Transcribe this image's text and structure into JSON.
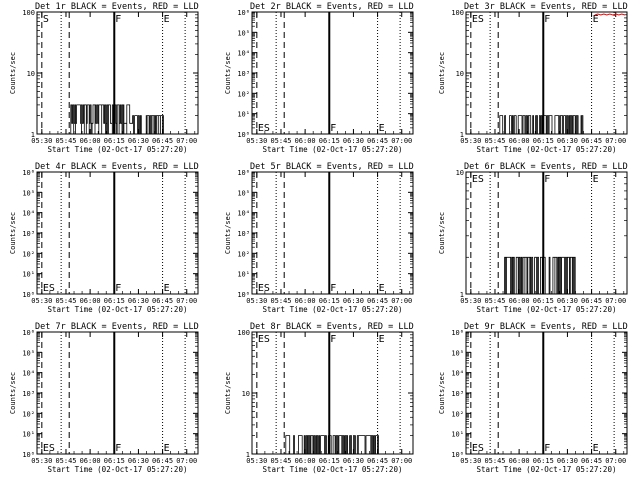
{
  "figure": {
    "xlabel": "Start Time (02-Oct-17 05:27:20)",
    "ylabel": "Counts/sec",
    "x_tick_labels": [
      "05:30",
      "05:45",
      "06:00",
      "06:15",
      "06:30",
      "06:45",
      "07:00"
    ],
    "colors": {
      "events": "#000000",
      "lld": "#ff0000"
    }
  },
  "chart_data": [
    {
      "type": "line",
      "title": "Det 1r BLACK = Events, RED = LLD",
      "yscale": "log",
      "ylim": [
        1,
        100
      ],
      "y_tick_labels": [
        "1",
        "10",
        "100"
      ],
      "xlim": [
        "05:27",
        "07:07"
      ],
      "vlines": [
        {
          "time": "05:30",
          "style": "dashed",
          "label": "S"
        },
        {
          "time": "05:47",
          "style": "dashed",
          "label": ""
        },
        {
          "time": "06:15",
          "style": "solid",
          "label": "F"
        },
        {
          "time": "06:45",
          "style": "dotted",
          "label": "E"
        },
        {
          "time": "05:42",
          "style": "dotted",
          "label": ""
        },
        {
          "time": "06:59",
          "style": "dotted",
          "label": ""
        }
      ],
      "series": [
        {
          "values_range": [
            "05:48",
            "06:46"
          ],
          "level_high": 3,
          "level_low": 2,
          "break": "06:26"
        }
      ]
    },
    {
      "type": "line",
      "title": "Det 2r BLACK = Events, RED = LLD",
      "yscale": "log",
      "ylim": [
        1,
        1000000
      ],
      "y_tick_labels": [
        "10⁰",
        "10¹",
        "10²",
        "10³",
        "10⁴",
        "10⁵",
        "10⁶"
      ],
      "xlim": [
        "05:27",
        "07:07"
      ],
      "vlines": [
        {
          "time": "05:30",
          "style": "dashed",
          "label": "ES"
        },
        {
          "time": "05:47",
          "style": "dashed",
          "label": ""
        },
        {
          "time": "06:15",
          "style": "solid",
          "label": "F"
        },
        {
          "time": "06:45",
          "style": "dotted",
          "label": "E"
        },
        {
          "time": "05:42",
          "style": "dotted",
          "label": ""
        },
        {
          "time": "06:59",
          "style": "dotted",
          "label": ""
        }
      ],
      "series": []
    },
    {
      "type": "line",
      "title": "Det 3r BLACK = Events, RED = LLD",
      "yscale": "log",
      "ylim": [
        1,
        100
      ],
      "y_tick_labels": [
        "1",
        "10",
        "100"
      ],
      "xlim": [
        "05:27",
        "07:07"
      ],
      "vlines": [
        {
          "time": "05:30",
          "style": "dashed",
          "label": "ES"
        },
        {
          "time": "05:47",
          "style": "dashed",
          "label": ""
        },
        {
          "time": "06:15",
          "style": "solid",
          "label": "F"
        },
        {
          "time": "06:45",
          "style": "dotted",
          "label": "E"
        },
        {
          "time": "05:42",
          "style": "dotted",
          "label": ""
        },
        {
          "time": "06:59",
          "style": "dotted",
          "label": ""
        }
      ],
      "series": [
        {
          "values_range": [
            "05:48",
            "06:40"
          ],
          "level_high": 2,
          "level_low": 1,
          "lld": true
        }
      ]
    },
    {
      "type": "line",
      "title": "Det 4r BLACK = Events, RED = LLD",
      "yscale": "log",
      "ylim": [
        1,
        1000000
      ],
      "y_tick_labels": [
        "10⁰",
        "10¹",
        "10²",
        "10³",
        "10⁴",
        "10⁵",
        "10⁶"
      ],
      "xlim": [
        "05:27",
        "07:07"
      ],
      "vlines": [
        {
          "time": "05:30",
          "style": "dashed",
          "label": "ES"
        },
        {
          "time": "05:47",
          "style": "dashed",
          "label": ""
        },
        {
          "time": "06:15",
          "style": "solid",
          "label": "F"
        },
        {
          "time": "06:45",
          "style": "dotted",
          "label": "E"
        },
        {
          "time": "05:42",
          "style": "dotted",
          "label": ""
        },
        {
          "time": "06:59",
          "style": "dotted",
          "label": ""
        }
      ],
      "series": []
    },
    {
      "type": "line",
      "title": "Det 5r BLACK = Events, RED = LLD",
      "yscale": "log",
      "ylim": [
        1,
        1000000
      ],
      "y_tick_labels": [
        "10⁰",
        "10¹",
        "10²",
        "10³",
        "10⁴",
        "10⁵",
        "10⁶"
      ],
      "xlim": [
        "05:27",
        "07:07"
      ],
      "vlines": [
        {
          "time": "05:30",
          "style": "dashed",
          "label": "ES"
        },
        {
          "time": "05:47",
          "style": "dashed",
          "label": ""
        },
        {
          "time": "06:15",
          "style": "solid",
          "label": "F"
        },
        {
          "time": "06:45",
          "style": "dotted",
          "label": "E"
        },
        {
          "time": "05:42",
          "style": "dotted",
          "label": ""
        },
        {
          "time": "06:59",
          "style": "dotted",
          "label": ""
        }
      ],
      "series": []
    },
    {
      "type": "line",
      "title": "Det 6r BLACK = Events, RED = LLD",
      "yscale": "log",
      "ylim": [
        1,
        10
      ],
      "y_tick_labels": [
        "1",
        "10"
      ],
      "xlim": [
        "05:27",
        "07:07"
      ],
      "vlines": [
        {
          "time": "05:30",
          "style": "dashed",
          "label": "ES"
        },
        {
          "time": "05:47",
          "style": "dashed",
          "label": ""
        },
        {
          "time": "06:15",
          "style": "solid",
          "label": "F"
        },
        {
          "time": "06:45",
          "style": "dotted",
          "label": "E"
        },
        {
          "time": "05:42",
          "style": "dotted",
          "label": ""
        },
        {
          "time": "06:59",
          "style": "dotted",
          "label": ""
        }
      ],
      "series": [
        {
          "values_range": [
            "05:48",
            "06:35"
          ],
          "level_high": 2,
          "level_low": 1
        }
      ]
    },
    {
      "type": "line",
      "title": "Det 7r BLACK = Events, RED = LLD",
      "yscale": "log",
      "ylim": [
        1,
        1000000
      ],
      "y_tick_labels": [
        "10⁰",
        "10¹",
        "10²",
        "10³",
        "10⁴",
        "10⁵",
        "10⁶"
      ],
      "xlim": [
        "05:27",
        "07:07"
      ],
      "vlines": [
        {
          "time": "05:30",
          "style": "dashed",
          "label": "ES"
        },
        {
          "time": "05:47",
          "style": "dashed",
          "label": ""
        },
        {
          "time": "06:15",
          "style": "solid",
          "label": "F"
        },
        {
          "time": "06:45",
          "style": "dotted",
          "label": "E"
        },
        {
          "time": "05:42",
          "style": "dotted",
          "label": ""
        },
        {
          "time": "06:59",
          "style": "dotted",
          "label": ""
        }
      ],
      "series": []
    },
    {
      "type": "line",
      "title": "Det 8r BLACK = Events, RED = LLD",
      "yscale": "log",
      "ylim": [
        1,
        100
      ],
      "y_tick_labels": [
        "1",
        "10",
        "100"
      ],
      "xlim": [
        "05:27",
        "07:07"
      ],
      "vlines": [
        {
          "time": "05:30",
          "style": "dashed",
          "label": "ES"
        },
        {
          "time": "05:47",
          "style": "dashed",
          "label": ""
        },
        {
          "time": "06:15",
          "style": "solid",
          "label": "F"
        },
        {
          "time": "06:45",
          "style": "dotted",
          "label": "E"
        },
        {
          "time": "05:42",
          "style": "dotted",
          "label": ""
        },
        {
          "time": "06:59",
          "style": "dotted",
          "label": ""
        }
      ],
      "series": [
        {
          "values_range": [
            "05:48",
            "06:46"
          ],
          "level_high": 2,
          "level_low": 1
        }
      ]
    },
    {
      "type": "line",
      "title": "Det 9r BLACK = Events, RED = LLD",
      "yscale": "log",
      "ylim": [
        1,
        1000000
      ],
      "y_tick_labels": [
        "10⁰",
        "10¹",
        "10²",
        "10³",
        "10⁴",
        "10⁵",
        "10⁶"
      ],
      "xlim": [
        "05:27",
        "07:07"
      ],
      "vlines": [
        {
          "time": "05:30",
          "style": "dashed",
          "label": "ES"
        },
        {
          "time": "05:47",
          "style": "dashed",
          "label": ""
        },
        {
          "time": "06:15",
          "style": "solid",
          "label": "F"
        },
        {
          "time": "06:45",
          "style": "dotted",
          "label": "E"
        },
        {
          "time": "05:42",
          "style": "dotted",
          "label": ""
        },
        {
          "time": "06:59",
          "style": "dotted",
          "label": ""
        }
      ],
      "series": []
    }
  ]
}
